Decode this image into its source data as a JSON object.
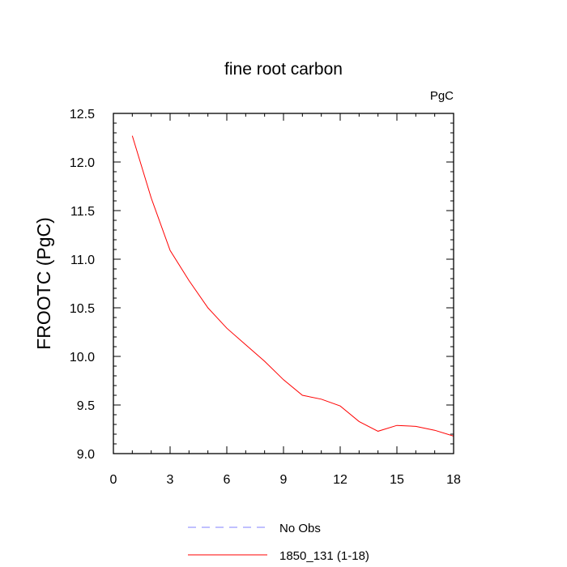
{
  "chart_data": {
    "type": "line",
    "title": "fine root carbon",
    "units_label": "PgC",
    "xlabel": "",
    "ylabel": "FROOTC  (PgC)",
    "xlim": [
      0,
      18
    ],
    "ylim": [
      9.0,
      12.5
    ],
    "x_major_ticks": [
      0,
      3,
      6,
      9,
      12,
      15,
      18
    ],
    "x_tick_labels": [
      "0",
      "3",
      "6",
      "9",
      "12",
      "15",
      "18"
    ],
    "y_major_ticks": [
      9.0,
      9.5,
      10.0,
      10.5,
      11.0,
      11.5,
      12.0,
      12.5
    ],
    "y_tick_labels": [
      "9.0",
      "9.5",
      "10.0",
      "10.5",
      "11.0",
      "11.5",
      "12.0",
      "12.5"
    ],
    "grid": false,
    "legend_position": "bottom",
    "series": [
      {
        "name": "1850_131 (1-18)",
        "color": "#ff0000",
        "dash": "solid",
        "x": [
          1,
          2,
          3,
          4,
          5,
          6,
          7,
          8,
          9,
          10,
          11,
          12,
          13,
          14,
          15,
          16,
          17,
          18
        ],
        "y": [
          12.27,
          11.63,
          11.09,
          10.78,
          10.5,
          10.29,
          10.12,
          9.95,
          9.76,
          9.6,
          9.56,
          9.49,
          9.33,
          9.23,
          9.29,
          9.28,
          9.24,
          9.18
        ]
      },
      {
        "name": "No Obs",
        "color": "#8080ff",
        "dash": "dashed",
        "x": [],
        "y": []
      }
    ]
  }
}
